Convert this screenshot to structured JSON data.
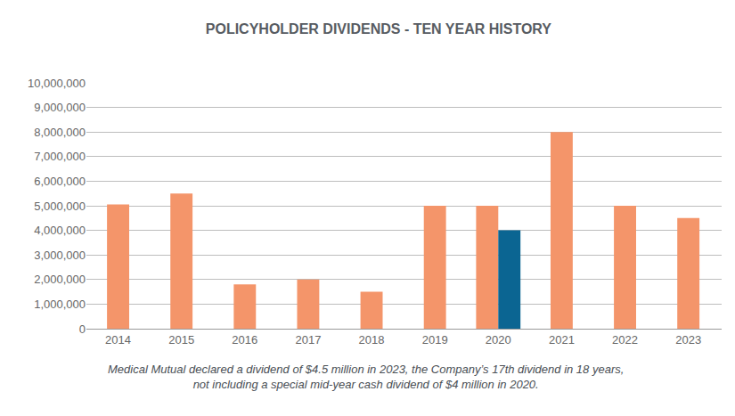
{
  "chart_data": {
    "type": "bar",
    "title": "POLICYHOLDER DIVIDENDS - TEN YEAR HISTORY",
    "caption": [
      "Medical Mutual declared a dividend of $4.5 million in 2023, the Company’s 17th dividend in 18 years,",
      "not including a special mid-year cash dividend of $4 million in 2020."
    ],
    "categories": [
      "2014",
      "2015",
      "2016",
      "2017",
      "2018",
      "2019",
      "2020",
      "2021",
      "2022",
      "2023"
    ],
    "series": [
      {
        "color": "#f4956a",
        "values": [
          5050000,
          5500000,
          1800000,
          2000000,
          1500000,
          5000000,
          5000000,
          8000000,
          5000000,
          4500000
        ]
      },
      {
        "color": "#0b6592",
        "values": [
          null,
          null,
          null,
          null,
          null,
          null,
          4000000,
          null,
          null,
          null
        ]
      }
    ],
    "ylim": [
      0,
      10000000
    ],
    "yticks": [
      0,
      {
        "value": 1000000,
        "label": "1,000,000"
      },
      {
        "value": 2000000,
        "label": "2,000,000"
      },
      {
        "value": 3000000,
        "label": "3,000,000"
      },
      {
        "value": 4000000,
        "label": "4,000,000"
      },
      {
        "value": 5000000,
        "label": "5,000,000"
      },
      {
        "value": 6000000,
        "label": "6,000,000"
      },
      {
        "value": 7000000,
        "label": "7,000,000"
      },
      {
        "value": 8000000,
        "label": "8,000,000"
      },
      {
        "value": 9000000,
        "label": "9,000,000"
      },
      {
        "value": 10000000,
        "label": "10,000,000"
      }
    ],
    "grid": true
  }
}
